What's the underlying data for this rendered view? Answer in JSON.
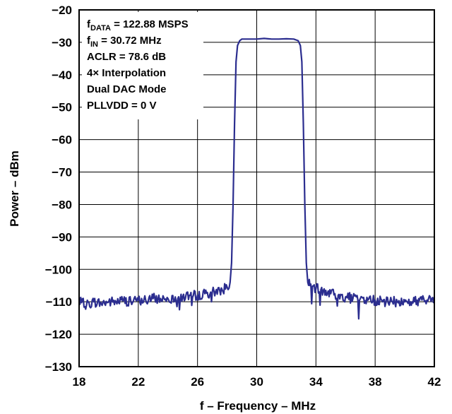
{
  "chart_data": {
    "type": "line",
    "xlabel": "f – Frequency – MHz",
    "ylabel": "Power – dBm",
    "xlim": [
      18,
      42
    ],
    "ylim": [
      -130,
      -20
    ],
    "x_ticks": [
      "18",
      "22",
      "26",
      "30",
      "34",
      "38",
      "42"
    ],
    "y_ticks": [
      "−20",
      "−30",
      "−40",
      "−50",
      "−60",
      "−70",
      "−80",
      "−90",
      "−100",
      "−110",
      "−120",
      "−130"
    ],
    "grid": true,
    "line_color": "#2b2d8f",
    "annotations": [
      {
        "main": "f",
        "sub": "DATA",
        "rest": " = 122.88 MSPS"
      },
      {
        "main": "f",
        "sub": "IN",
        "rest": " = 30.72 MHz"
      },
      {
        "main": "ACLR = 78.6 dB",
        "sub": "",
        "rest": ""
      },
      {
        "main": "4× Interpolation",
        "sub": "",
        "rest": ""
      },
      {
        "main": "Dual DAC Mode",
        "sub": "",
        "rest": ""
      },
      {
        "main": "PLLVDD = 0 V",
        "sub": "",
        "rest": ""
      }
    ],
    "series": [
      {
        "values": [
          [
            18.0,
            -110
          ],
          [
            18.5,
            -111
          ],
          [
            19.0,
            -110
          ],
          [
            19.5,
            -110.5
          ],
          [
            20.0,
            -110
          ],
          [
            20.5,
            -110
          ],
          [
            21.0,
            -109.5
          ],
          [
            21.5,
            -110
          ],
          [
            22.0,
            -109.5
          ],
          [
            22.5,
            -109.5
          ],
          [
            23.0,
            -109
          ],
          [
            23.5,
            -109
          ],
          [
            24.0,
            -109
          ],
          [
            24.5,
            -108.5
          ],
          [
            25.0,
            -108.5
          ],
          [
            25.5,
            -108
          ],
          [
            26.0,
            -108
          ],
          [
            26.5,
            -107.5
          ],
          [
            27.0,
            -107
          ],
          [
            27.5,
            -106.5
          ],
          [
            28.0,
            -105.5
          ],
          [
            28.2,
            -104
          ],
          [
            28.3,
            -98
          ],
          [
            28.4,
            -80
          ],
          [
            28.5,
            -55
          ],
          [
            28.6,
            -36
          ],
          [
            28.7,
            -31
          ],
          [
            28.85,
            -29.5
          ],
          [
            29.0,
            -29
          ],
          [
            29.5,
            -29
          ],
          [
            30.0,
            -29
          ],
          [
            30.5,
            -28.8
          ],
          [
            31.0,
            -29
          ],
          [
            31.5,
            -29
          ],
          [
            32.0,
            -28.9
          ],
          [
            32.5,
            -29
          ],
          [
            32.8,
            -29.5
          ],
          [
            32.95,
            -31
          ],
          [
            33.05,
            -36
          ],
          [
            33.15,
            -55
          ],
          [
            33.25,
            -80
          ],
          [
            33.35,
            -98
          ],
          [
            33.45,
            -104
          ],
          [
            33.6,
            -105
          ],
          [
            34.0,
            -106
          ],
          [
            34.5,
            -106.5
          ],
          [
            35.0,
            -107.5
          ],
          [
            35.5,
            -108
          ],
          [
            36.0,
            -108.5
          ],
          [
            36.5,
            -109
          ],
          [
            37.0,
            -109
          ],
          [
            37.5,
            -109.5
          ],
          [
            38.0,
            -109.5
          ],
          [
            38.5,
            -110
          ],
          [
            39.0,
            -110
          ],
          [
            39.5,
            -110
          ],
          [
            40.0,
            -110
          ],
          [
            40.5,
            -110
          ],
          [
            41.0,
            -109.5
          ],
          [
            41.5,
            -109.5
          ],
          [
            42.0,
            -109.5
          ]
        ]
      }
    ]
  }
}
